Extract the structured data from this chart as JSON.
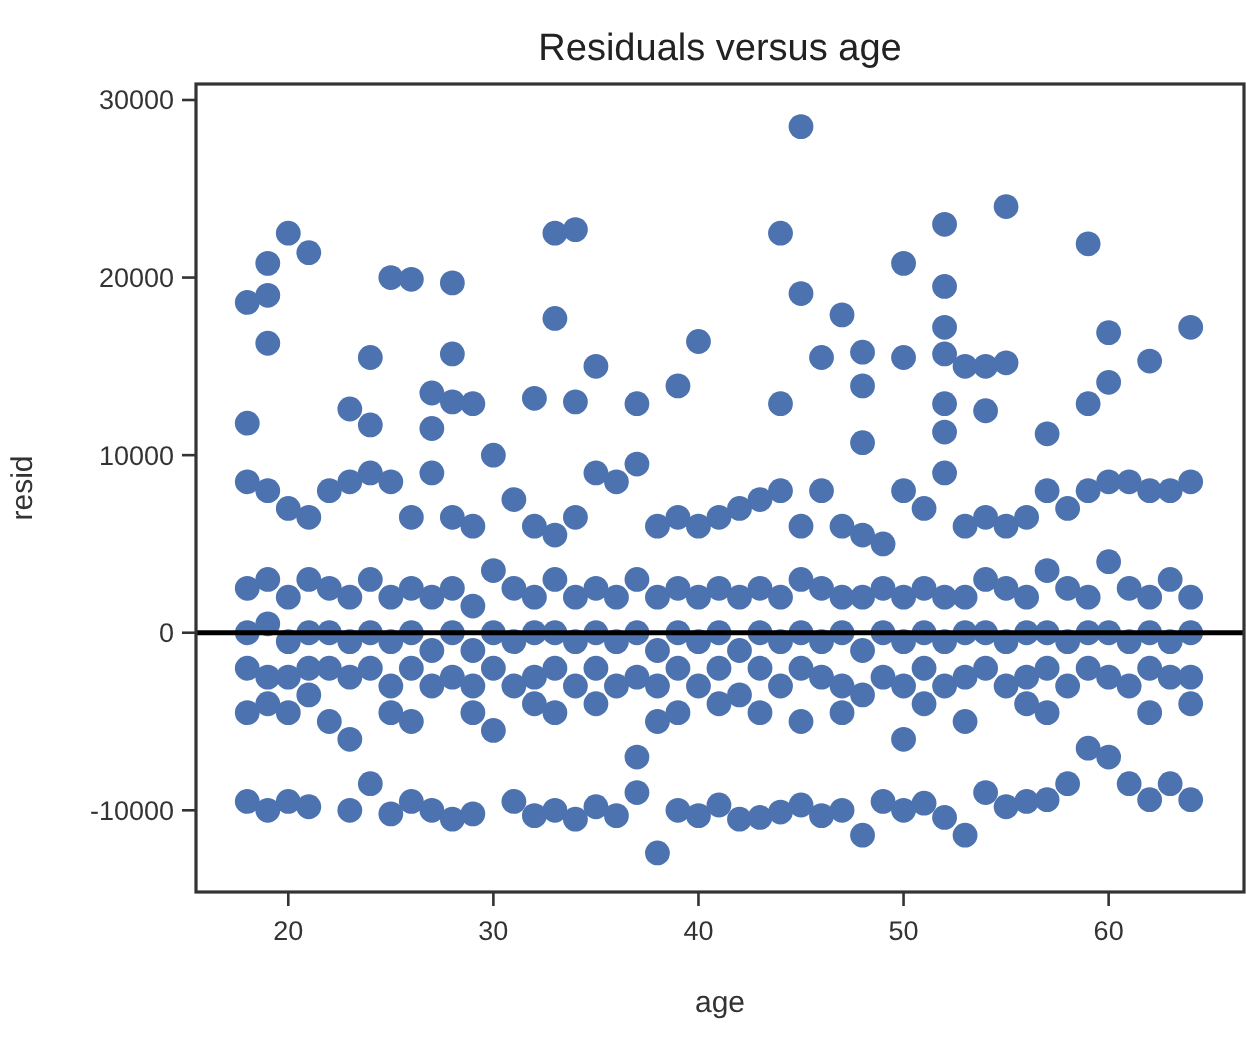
{
  "chart_data": {
    "type": "scatter",
    "title": "Residuals versus age",
    "xlabel": "age",
    "ylabel": "resid",
    "xlim": [
      15.5,
      66.6
    ],
    "ylim": [
      -14600,
      30900
    ],
    "xticks": [
      20,
      30,
      40,
      50,
      60
    ],
    "yticks": [
      -10000,
      0,
      10000,
      20000,
      30000
    ],
    "marker": "circle",
    "ref_lines": [
      {
        "axis": "y",
        "value": 0,
        "color": "#000000"
      }
    ],
    "series": [
      {
        "color": "#4c72b0",
        "x": [
          18,
          18,
          18,
          18,
          18,
          18,
          18,
          18,
          19,
          19,
          19,
          19,
          19,
          19,
          19,
          19,
          19,
          20,
          20,
          20,
          20,
          20,
          20,
          20,
          21,
          21,
          21,
          21,
          21,
          21,
          21,
          22,
          22,
          22,
          22,
          22,
          23,
          23,
          23,
          23,
          23,
          23,
          23,
          24,
          24,
          24,
          24,
          24,
          24,
          24,
          25,
          25,
          25,
          25,
          25,
          25,
          25,
          26,
          26,
          26,
          26,
          26,
          26,
          26,
          27,
          27,
          27,
          27,
          27,
          27,
          27,
          28,
          28,
          28,
          28,
          28,
          28,
          28,
          28,
          29,
          29,
          29,
          29,
          29,
          29,
          29,
          30,
          30,
          30,
          30,
          30,
          31,
          31,
          31,
          31,
          31,
          32,
          32,
          32,
          32,
          32,
          32,
          32,
          33,
          33,
          33,
          33,
          33,
          33,
          33,
          33,
          34,
          34,
          34,
          34,
          34,
          34,
          34,
          35,
          35,
          35,
          35,
          35,
          35,
          35,
          36,
          36,
          36,
          36,
          36,
          37,
          37,
          37,
          37,
          37,
          37,
          37,
          38,
          38,
          38,
          38,
          38,
          38,
          39,
          39,
          39,
          39,
          39,
          39,
          39,
          40,
          40,
          40,
          40,
          40,
          40,
          41,
          41,
          41,
          41,
          41,
          41,
          42,
          42,
          42,
          42,
          42,
          43,
          43,
          43,
          43,
          43,
          43,
          44,
          44,
          44,
          44,
          44,
          44,
          44,
          45,
          45,
          45,
          45,
          45,
          45,
          45,
          45,
          46,
          46,
          46,
          46,
          46,
          46,
          47,
          47,
          47,
          47,
          47,
          47,
          47,
          48,
          48,
          48,
          48,
          48,
          48,
          48,
          48,
          49,
          49,
          49,
          49,
          49,
          50,
          50,
          50,
          50,
          50,
          50,
          50,
          50,
          51,
          51,
          51,
          51,
          51,
          51,
          52,
          52,
          52,
          52,
          52,
          52,
          52,
          52,
          52,
          52,
          52,
          53,
          53,
          53,
          53,
          53,
          53,
          53,
          54,
          54,
          54,
          54,
          54,
          54,
          54,
          55,
          55,
          55,
          55,
          55,
          55,
          55,
          56,
          56,
          56,
          56,
          56,
          56,
          57,
          57,
          57,
          57,
          57,
          57,
          57,
          58,
          58,
          58,
          58,
          58,
          59,
          59,
          59,
          59,
          59,
          59,
          59,
          60,
          60,
          60,
          60,
          60,
          60,
          60,
          61,
          61,
          61,
          61,
          61,
          62,
          62,
          62,
          62,
          62,
          62,
          62,
          63,
          63,
          63,
          63,
          63,
          64,
          64,
          64,
          64,
          64,
          64,
          64
        ],
        "values": [
          18600,
          11800,
          8500,
          2500,
          0,
          -2000,
          -4500,
          -9500,
          20800,
          19000,
          16300,
          8000,
          3000,
          500,
          -2500,
          -4000,
          -10000,
          22500,
          7000,
          2000,
          -500,
          -2500,
          -4500,
          -9500,
          21400,
          6500,
          3000,
          0,
          -2000,
          -3500,
          -9800,
          8000,
          2500,
          0,
          -2000,
          -5000,
          12600,
          8500,
          2000,
          -500,
          -2500,
          -6000,
          -10000,
          15500,
          11700,
          9000,
          3000,
          0,
          -2000,
          -8500,
          20000,
          8500,
          2000,
          -500,
          -3000,
          -4500,
          -10200,
          19900,
          6500,
          2500,
          0,
          -2000,
          -5000,
          -9500,
          13500,
          11500,
          9000,
          2000,
          -1000,
          -3000,
          -10000,
          19700,
          15700,
          13000,
          6500,
          2500,
          0,
          -2500,
          -10500,
          12900,
          6000,
          1500,
          -1000,
          -3000,
          -4500,
          -10200,
          10000,
          3500,
          0,
          -2000,
          -5500,
          7500,
          2500,
          -500,
          -3000,
          -9500,
          13200,
          6000,
          2000,
          0,
          -2500,
          -4000,
          -10300,
          22500,
          17700,
          5500,
          3000,
          0,
          -2000,
          -4500,
          -10000,
          22700,
          13000,
          6500,
          2000,
          -500,
          -3000,
          -10500,
          15000,
          9000,
          2500,
          0,
          -2000,
          -4000,
          -9800,
          8500,
          2000,
          -500,
          -3000,
          -10300,
          12900,
          9500,
          3000,
          0,
          -2500,
          -7000,
          -9000,
          6000,
          2000,
          -1000,
          -3000,
          -5000,
          -12400,
          13900,
          6500,
          2500,
          0,
          -2000,
          -4500,
          -10000,
          16400,
          6000,
          2000,
          -500,
          -3000,
          -10300,
          6500,
          2500,
          0,
          -2000,
          -4000,
          -9700,
          7000,
          2000,
          -1000,
          -3500,
          -10500,
          7500,
          2500,
          0,
          -2000,
          -4500,
          -10400,
          22500,
          12900,
          8000,
          2000,
          -500,
          -3000,
          -10100,
          28500,
          19100,
          6000,
          3000,
          0,
          -2000,
          -5000,
          -9700,
          15500,
          8000,
          2500,
          -500,
          -2500,
          -10300,
          17900,
          6000,
          2000,
          0,
          -3000,
          -4500,
          -10000,
          15800,
          13900,
          10700,
          5500,
          2000,
          -1000,
          -3500,
          -11400,
          5000,
          2500,
          0,
          -2500,
          -9500,
          20800,
          15500,
          8000,
          2000,
          -500,
          -3000,
          -6000,
          -10000,
          7000,
          2500,
          0,
          -2000,
          -4000,
          -9600,
          23000,
          19500,
          17200,
          15700,
          12900,
          11300,
          9000,
          2000,
          -500,
          -3000,
          -10400,
          15000,
          6000,
          2000,
          0,
          -2500,
          -5000,
          -11400,
          15000,
          12500,
          6500,
          3000,
          0,
          -2000,
          -9000,
          24000,
          15200,
          6000,
          2500,
          -500,
          -3000,
          -9800,
          6500,
          2000,
          0,
          -2500,
          -4000,
          -9500,
          11200,
          8000,
          3500,
          0,
          -2000,
          -4500,
          -9400,
          7000,
          2500,
          -500,
          -3000,
          -8500,
          21900,
          12900,
          8000,
          2000,
          0,
          -2000,
          -6500,
          16900,
          14100,
          8500,
          4000,
          0,
          -2500,
          -7000,
          8500,
          2500,
          -500,
          -3000,
          -8500,
          15300,
          8000,
          2000,
          0,
          -2000,
          -4500,
          -9400,
          8000,
          3000,
          -500,
          -2500,
          -8500,
          17200,
          8500,
          2000,
          0,
          -2500,
          -4000,
          -9400
        ]
      }
    ]
  }
}
